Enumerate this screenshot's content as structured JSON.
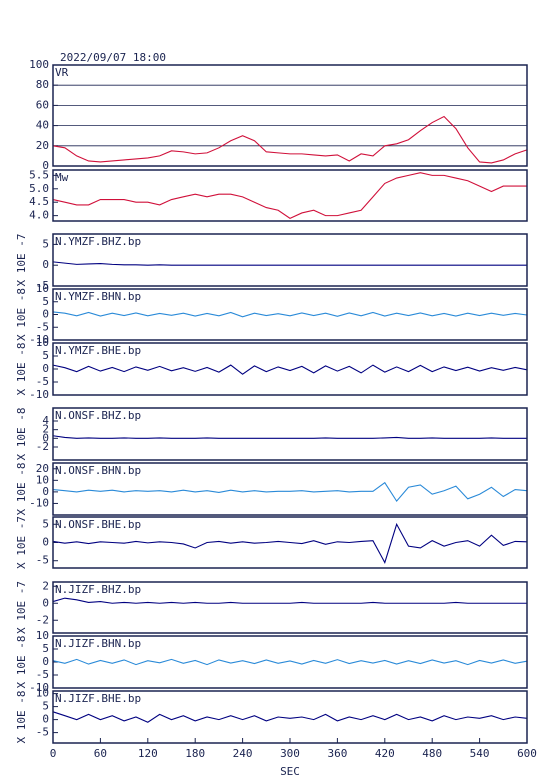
{
  "chart_data": [
    {
      "type": "line",
      "title": "2022/09/07 18:00",
      "label": "VR",
      "color": "#d0103a",
      "grid": true,
      "xlim": [
        0,
        600
      ],
      "ylim": [
        0,
        100
      ],
      "yticks": [
        0,
        20,
        40,
        60,
        80,
        100
      ],
      "x": [
        0,
        15,
        30,
        45,
        60,
        75,
        90,
        105,
        120,
        135,
        150,
        165,
        180,
        195,
        210,
        225,
        240,
        255,
        270,
        285,
        300,
        315,
        330,
        345,
        360,
        375,
        390,
        405,
        420,
        435,
        450,
        465,
        480,
        495,
        510,
        525,
        540,
        555,
        570,
        585,
        600
      ],
      "values": [
        20,
        18,
        10,
        5,
        4,
        5,
        6,
        7,
        8,
        10,
        15,
        14,
        12,
        13,
        18,
        25,
        30,
        25,
        14,
        13,
        12,
        12,
        11,
        10,
        11,
        5,
        12,
        10,
        20,
        22,
        26,
        35,
        43,
        49,
        37,
        18,
        4,
        3,
        6,
        12,
        16
      ]
    },
    {
      "type": "line",
      "label": "Mw",
      "color": "#d0103a",
      "xlim": [
        0,
        600
      ],
      "ylim": [
        3.8,
        5.7
      ],
      "yticks": [
        {
          "value": 4,
          "label": "4.0"
        },
        4.5,
        {
          "value": 5,
          "label": "5.0"
        },
        5.5
      ],
      "x": [
        0,
        15,
        30,
        45,
        60,
        75,
        90,
        105,
        120,
        135,
        150,
        165,
        180,
        195,
        210,
        225,
        240,
        255,
        270,
        285,
        300,
        315,
        330,
        345,
        360,
        375,
        390,
        405,
        420,
        435,
        450,
        465,
        480,
        495,
        510,
        525,
        540,
        555,
        570,
        585,
        600
      ],
      "values": [
        4.6,
        4.5,
        4.4,
        4.4,
        4.6,
        4.6,
        4.6,
        4.5,
        4.5,
        4.4,
        4.6,
        4.7,
        4.8,
        4.7,
        4.8,
        4.8,
        4.7,
        4.5,
        4.3,
        4.2,
        3.9,
        4.1,
        4.2,
        4.0,
        4.0,
        4.1,
        4.2,
        4.7,
        5.2,
        5.4,
        5.5,
        5.6,
        5.5,
        5.5,
        5.4,
        5.3,
        5.1,
        4.9,
        5.1,
        5.1,
        5.1
      ]
    },
    {
      "type": "line",
      "label": "N.YMZF.BHZ.bp",
      "ylabel": "X 10E -7",
      "color": "#000080",
      "xlim": [
        0,
        600
      ],
      "ylim": [
        -5,
        7.5
      ],
      "yticks": [
        -5,
        0,
        5
      ],
      "x": [
        0,
        15,
        30,
        45,
        60,
        75,
        90,
        105,
        120,
        135,
        150,
        165,
        180,
        195,
        210,
        225,
        240,
        255,
        270,
        285,
        300,
        315,
        330,
        345,
        360,
        375,
        390,
        405,
        420,
        435,
        450,
        465,
        480,
        495,
        510,
        525,
        540,
        555,
        570,
        585,
        600
      ],
      "values": [
        0.8,
        0.5,
        0.2,
        0.3,
        0.4,
        0.2,
        0.1,
        0.1,
        0,
        0.1,
        0,
        0,
        0,
        0,
        0,
        0,
        0,
        0,
        0,
        0,
        0,
        0,
        0,
        0,
        0,
        0,
        0,
        0,
        0,
        0,
        0,
        0,
        0,
        0,
        0,
        0,
        0,
        0,
        0,
        0,
        0
      ]
    },
    {
      "type": "line",
      "label": "N.YMZF.BHN.bp",
      "ylabel": "X 10E -8",
      "color": "#2a8ad8",
      "xlim": [
        0,
        600
      ],
      "ylim": [
        -10,
        10
      ],
      "yticks": [
        -10,
        -5,
        0,
        5,
        10
      ],
      "x": [
        0,
        15,
        30,
        45,
        60,
        75,
        90,
        105,
        120,
        135,
        150,
        165,
        180,
        195,
        210,
        225,
        240,
        255,
        270,
        285,
        300,
        315,
        330,
        345,
        360,
        375,
        390,
        405,
        420,
        435,
        450,
        465,
        480,
        495,
        510,
        525,
        540,
        555,
        570,
        585,
        600
      ],
      "values": [
        1,
        0.5,
        -0.5,
        0.8,
        -0.6,
        0.5,
        -0.4,
        0.6,
        -0.5,
        0.4,
        -0.3,
        0.5,
        -0.6,
        0.4,
        -0.5,
        0.8,
        -0.9,
        0.5,
        -0.4,
        0.3,
        -0.5,
        0.6,
        -0.4,
        0.5,
        -0.7,
        0.6,
        -0.5,
        0.8,
        -0.6,
        0.5,
        -0.4,
        0.6,
        -0.5,
        0.4,
        -0.6,
        0.5,
        -0.4,
        0.5,
        -0.3,
        0.4,
        -0.2
      ]
    },
    {
      "type": "line",
      "label": "N.YMZF.BHE.bp",
      "ylabel": "X 10E -8",
      "color": "#000080",
      "xlim": [
        0,
        600
      ],
      "ylim": [
        -10,
        10
      ],
      "yticks": [
        -10,
        -5,
        0,
        5,
        10
      ],
      "x": [
        0,
        15,
        30,
        45,
        60,
        75,
        90,
        105,
        120,
        135,
        150,
        165,
        180,
        195,
        210,
        225,
        240,
        255,
        270,
        285,
        300,
        315,
        330,
        345,
        360,
        375,
        390,
        405,
        420,
        435,
        450,
        465,
        480,
        495,
        510,
        525,
        540,
        555,
        570,
        585,
        600
      ],
      "values": [
        1.5,
        0.5,
        -1,
        1,
        -0.8,
        0.6,
        -1,
        0.8,
        -0.5,
        1,
        -0.7,
        0.5,
        -0.9,
        0.6,
        -1.2,
        1.5,
        -2,
        1.2,
        -1,
        0.8,
        -0.6,
        1,
        -1.5,
        1.2,
        -0.8,
        1,
        -1.5,
        1.5,
        -1.2,
        0.8,
        -1,
        1.4,
        -1,
        0.8,
        -0.6,
        0.7,
        -0.8,
        0.5,
        -0.5,
        0.6,
        -0.3
      ]
    },
    {
      "type": "line",
      "label": "N.ONSF.BHZ.bp",
      "ylabel": "X 10E -8",
      "color": "#000080",
      "xlim": [
        0,
        600
      ],
      "ylim": [
        -5,
        7
      ],
      "yticks": [
        -2,
        0,
        2,
        4
      ],
      "x": [
        0,
        15,
        30,
        45,
        60,
        75,
        90,
        105,
        120,
        135,
        150,
        165,
        180,
        195,
        210,
        225,
        240,
        255,
        270,
        285,
        300,
        315,
        330,
        345,
        360,
        375,
        390,
        405,
        420,
        435,
        450,
        465,
        480,
        495,
        510,
        525,
        540,
        555,
        570,
        585,
        600
      ],
      "values": [
        0.6,
        0.2,
        0,
        0.1,
        0,
        0,
        0.1,
        0,
        0,
        0.1,
        0,
        0,
        0,
        0.1,
        0,
        0,
        0,
        0,
        0,
        0,
        0,
        0,
        0,
        0.1,
        0,
        0,
        0,
        0,
        0.1,
        0.2,
        0,
        0,
        0.1,
        0,
        0,
        0,
        0,
        0.1,
        0,
        0,
        0
      ]
    },
    {
      "type": "line",
      "label": "N.ONSF.BHN.bp",
      "ylabel": "X 10E -8",
      "color": "#2a8ad8",
      "xlim": [
        0,
        600
      ],
      "ylim": [
        -20,
        25
      ],
      "yticks": [
        -10,
        0,
        10,
        20
      ],
      "x": [
        0,
        15,
        30,
        45,
        60,
        75,
        90,
        105,
        120,
        135,
        150,
        165,
        180,
        195,
        210,
        225,
        240,
        255,
        270,
        285,
        300,
        315,
        330,
        345,
        360,
        375,
        390,
        405,
        420,
        435,
        450,
        465,
        480,
        495,
        510,
        525,
        540,
        555,
        570,
        585,
        600
      ],
      "values": [
        2,
        1,
        0,
        1.5,
        0.5,
        1.5,
        0,
        1,
        0.5,
        1,
        0,
        1.5,
        0,
        1,
        -0.5,
        1.5,
        0,
        1,
        0,
        0.5,
        0.5,
        1,
        0,
        0.5,
        1,
        0,
        0.5,
        0.5,
        8,
        -8,
        4,
        6,
        -2,
        1,
        5,
        -6,
        -2,
        4,
        -4,
        2,
        1
      ]
    },
    {
      "type": "line",
      "label": "N.ONSF.BHE.bp",
      "ylabel": "X 10E -7",
      "color": "#000080",
      "xlim": [
        0,
        600
      ],
      "ylim": [
        -7,
        7
      ],
      "yticks": [
        -5,
        0,
        5
      ],
      "x": [
        0,
        15,
        30,
        45,
        60,
        75,
        90,
        105,
        120,
        135,
        150,
        165,
        180,
        195,
        210,
        225,
        240,
        255,
        270,
        285,
        300,
        315,
        330,
        345,
        360,
        375,
        390,
        405,
        420,
        435,
        450,
        465,
        480,
        495,
        510,
        525,
        540,
        555,
        570,
        585,
        600
      ],
      "values": [
        0.3,
        -0.2,
        0.2,
        -0.3,
        0.2,
        0,
        -0.2,
        0.3,
        -0.1,
        0.2,
        0,
        -0.4,
        -1.5,
        0,
        0.3,
        -0.2,
        0.2,
        -0.2,
        0,
        0.3,
        0,
        -0.3,
        0.5,
        -0.5,
        0.2,
        0,
        0.3,
        0.5,
        -5.5,
        5,
        -1,
        -1.5,
        0.5,
        -1,
        0,
        0.5,
        -1,
        2,
        -0.8,
        0.3,
        0.2
      ]
    },
    {
      "type": "line",
      "label": "N.JIZF.BHZ.bp",
      "ylabel": "X 10E -7",
      "color": "#000080",
      "xlim": [
        0,
        600
      ],
      "ylim": [
        -3.5,
        2.5
      ],
      "yticks": [
        -2,
        0,
        2
      ],
      "x": [
        0,
        15,
        30,
        45,
        60,
        75,
        90,
        105,
        120,
        135,
        150,
        165,
        180,
        195,
        210,
        225,
        240,
        255,
        270,
        285,
        300,
        315,
        330,
        345,
        360,
        375,
        390,
        405,
        420,
        435,
        450,
        465,
        480,
        495,
        510,
        525,
        540,
        555,
        570,
        585,
        600
      ],
      "values": [
        0.2,
        0.6,
        0.4,
        0.1,
        0.2,
        0,
        0.1,
        0,
        0.1,
        0,
        0.1,
        0,
        0.1,
        0,
        0,
        0.1,
        0,
        0,
        0,
        0,
        0,
        0.1,
        0,
        0,
        0,
        0,
        0,
        0.1,
        0,
        0,
        0,
        0,
        0,
        0,
        0.1,
        0,
        0,
        0,
        0,
        0,
        0
      ]
    },
    {
      "type": "line",
      "label": "N.JIZF.BHN.bp",
      "ylabel": "X 10E -8",
      "color": "#2a8ad8",
      "xlim": [
        0,
        600
      ],
      "ylim": [
        -10,
        10
      ],
      "yticks": [
        -10,
        -5,
        0,
        5,
        10
      ],
      "x": [
        0,
        15,
        30,
        45,
        60,
        75,
        90,
        105,
        120,
        135,
        150,
        165,
        180,
        195,
        210,
        225,
        240,
        255,
        270,
        285,
        300,
        315,
        330,
        345,
        360,
        375,
        390,
        405,
        420,
        435,
        450,
        465,
        480,
        495,
        510,
        525,
        540,
        555,
        570,
        585,
        600
      ],
      "values": [
        0.5,
        -0.5,
        1,
        -0.8,
        0.6,
        -0.5,
        0.8,
        -1,
        0.5,
        -0.3,
        1,
        -0.5,
        0.6,
        -1,
        0.8,
        -0.4,
        0.5,
        -0.6,
        0.8,
        -0.5,
        0.4,
        -0.8,
        0.6,
        -0.5,
        0.9,
        -0.6,
        0.5,
        -0.4,
        0.6,
        -0.8,
        0.5,
        -0.6,
        0.8,
        -0.4,
        0.5,
        -1,
        0.6,
        -0.4,
        0.8,
        -0.5,
        0.3
      ]
    },
    {
      "type": "line",
      "label": "N.JIZF.BHE.bp",
      "ylabel": "X 10E -8",
      "color": "#000080",
      "xlim": [
        0,
        600
      ],
      "ylim": [
        -9,
        11
      ],
      "yticks": [
        -5,
        0,
        5,
        10
      ],
      "xlabel": "SEC",
      "xticks": [
        0,
        60,
        120,
        180,
        240,
        300,
        360,
        420,
        480,
        540,
        600
      ],
      "x": [
        0,
        15,
        30,
        45,
        60,
        75,
        90,
        105,
        120,
        135,
        150,
        165,
        180,
        195,
        210,
        225,
        240,
        255,
        270,
        285,
        300,
        315,
        330,
        345,
        360,
        375,
        390,
        405,
        420,
        435,
        450,
        465,
        480,
        495,
        510,
        525,
        540,
        555,
        570,
        585,
        600
      ],
      "values": [
        3,
        1.5,
        0,
        2,
        0,
        1.5,
        -0.5,
        1,
        -1,
        2,
        0,
        1.5,
        -0.5,
        1,
        0,
        1.5,
        0,
        1.5,
        -0.5,
        1,
        0.5,
        1,
        0,
        2,
        -0.5,
        1,
        0,
        1.5,
        0,
        2,
        0,
        1,
        -0.5,
        1.5,
        0,
        1,
        0.5,
        1.5,
        0,
        1,
        0.5
      ]
    }
  ]
}
